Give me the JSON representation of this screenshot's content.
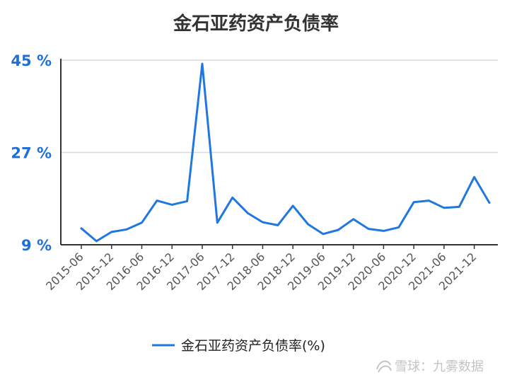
{
  "watermark": "雪球：九雾数据",
  "colors": {
    "series": "#1f77e0",
    "ytick": "#1f6fd6",
    "grid": "#d9d9d9",
    "axis": "#333333",
    "watermark": "#c4c4c4"
  },
  "chart_data": {
    "type": "line",
    "title": "金石亚药资产负债率",
    "xlabel": "",
    "ylabel": "",
    "ylim": [
      9,
      45
    ],
    "yticks": [
      9,
      27,
      45
    ],
    "ytick_labels": [
      "9 %",
      "27 %",
      "45 %"
    ],
    "grid": true,
    "legend_position": "bottom-center",
    "x": [
      "2015-06",
      "2015-09",
      "2015-12",
      "2016-03",
      "2016-06",
      "2016-09",
      "2016-12",
      "2017-03",
      "2017-06",
      "2017-09",
      "2017-12",
      "2018-03",
      "2018-06",
      "2018-09",
      "2018-12",
      "2019-03",
      "2019-06",
      "2019-09",
      "2019-12",
      "2020-03",
      "2020-06",
      "2020-09",
      "2020-12",
      "2021-03",
      "2021-06",
      "2021-09",
      "2021-12",
      "2022-03"
    ],
    "xtick_labels": [
      "2015-06",
      "2015-12",
      "2016-06",
      "2016-12",
      "2017-06",
      "2017-12",
      "2018-06",
      "2018-12",
      "2019-06",
      "2019-12",
      "2020-06",
      "2020-12",
      "2021-06",
      "2021-12"
    ],
    "series": [
      {
        "name": "金石亚药资产负债率(%)",
        "values": [
          12.2,
          9.7,
          11.5,
          12.0,
          13.3,
          17.6,
          16.8,
          17.5,
          44.3,
          13.3,
          18.2,
          15.2,
          13.4,
          12.8,
          16.6,
          13.0,
          11.1,
          11.9,
          14.0,
          12.1,
          11.7,
          12.4,
          17.3,
          17.6,
          16.2,
          16.4,
          22.2,
          17.2
        ]
      }
    ]
  }
}
